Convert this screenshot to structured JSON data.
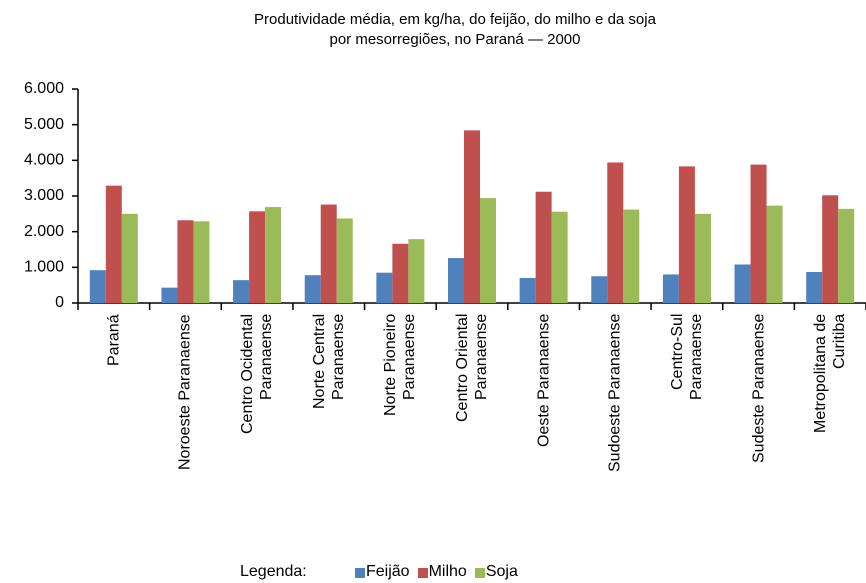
{
  "chart_data": {
    "type": "bar",
    "title": "Produtividade média, em kg/ha, do feijão, do milho e da soja\npor mesorregiões, no Paraná — 2000",
    "categories": [
      "Paraná",
      "Noroeste Paranaense",
      "Centro Ocidental\nParanaense",
      "Norte Central\nParanaense",
      "Norte Pioneiro\nParanaense",
      "Centro Oriental\nParanaense",
      "Oeste Paranaense",
      "Sudoeste Paranaense",
      "Centro-Sul\nParanaense",
      "Sudeste Paranaense",
      "Metropolitana de\nCuritiba"
    ],
    "series": [
      {
        "name": "Feijão",
        "color": "#4f81bd",
        "values": [
          920,
          430,
          640,
          780,
          850,
          1260,
          700,
          750,
          800,
          1080,
          870
        ]
      },
      {
        "name": "Milho",
        "color": "#c0504d",
        "values": [
          3290,
          2320,
          2570,
          2760,
          1660,
          4840,
          3120,
          3940,
          3830,
          3880,
          3020
        ]
      },
      {
        "name": "Soja",
        "color": "#9bbb59",
        "values": [
          2500,
          2290,
          2690,
          2370,
          1790,
          2940,
          2560,
          2620,
          2500,
          2730,
          2640
        ]
      }
    ],
    "ylim": [
      0,
      6000
    ],
    "yticks": [
      0,
      {
        "value": 1000,
        "label": "1.000"
      },
      {
        "value": 2000,
        "label": "2.000"
      },
      {
        "value": 3000,
        "label": "3.000"
      },
      {
        "value": 4000,
        "label": "4.000"
      },
      {
        "value": 5000,
        "label": "5.000"
      },
      {
        "value": 6000,
        "label": "6.000"
      }
    ],
    "legend_title": "Legenda:",
    "legend_position": "bottom"
  }
}
